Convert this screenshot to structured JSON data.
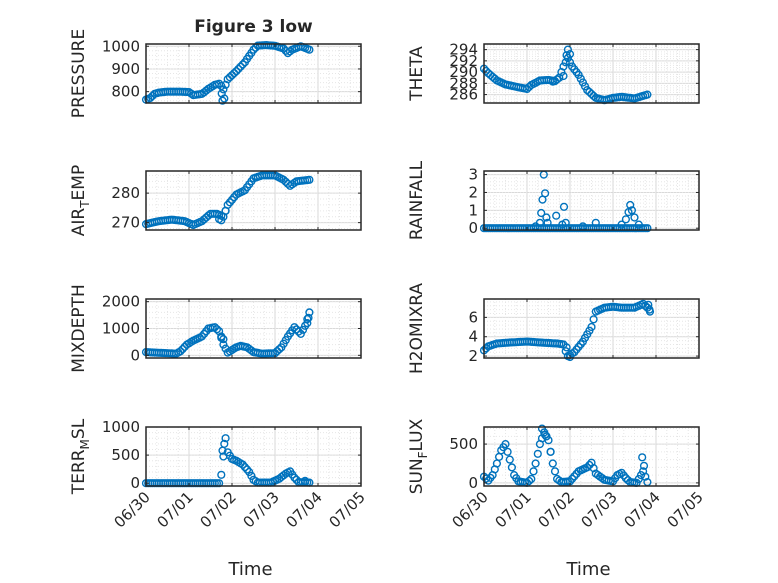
{
  "figure": {
    "title": "Figure 3 low",
    "marker_color": "#0072bd",
    "axis_color": "#262626",
    "grid_color": "#d9d9d9"
  },
  "chart_data": [
    {
      "type": "scatter",
      "ylabel": "PRESSURE",
      "title": "Figure 3 low",
      "xlabel": "",
      "grid": true,
      "x_ticks": [
        "06/30",
        "07/01",
        "07/02",
        "07/03",
        "07/04",
        "07/05"
      ],
      "show_x_tick_labels": false,
      "ylim": [
        750,
        1010
      ],
      "yticks": [
        800,
        900,
        1000
      ],
      "ytick_labels": [
        "800",
        "900",
        "1000"
      ],
      "anchors": [
        [
          0.0,
          765
        ],
        [
          0.1,
          772
        ],
        [
          0.2,
          790
        ],
        [
          0.3,
          796
        ],
        [
          0.5,
          800
        ],
        [
          0.8,
          800
        ],
        [
          1.0,
          798
        ],
        [
          1.1,
          785
        ],
        [
          1.3,
          790
        ],
        [
          1.45,
          812
        ],
        [
          1.6,
          830
        ],
        [
          1.7,
          835
        ],
        [
          1.75,
          825
        ],
        [
          1.8,
          810
        ],
        [
          1.85,
          830
        ],
        [
          1.9,
          855
        ],
        [
          2.1,
          890
        ],
        [
          2.3,
          930
        ],
        [
          2.5,
          985
        ],
        [
          2.6,
          1003
        ],
        [
          2.8,
          1005
        ],
        [
          3.0,
          1002
        ],
        [
          3.2,
          990
        ],
        [
          3.3,
          970
        ],
        [
          3.4,
          985
        ],
        [
          3.6,
          1000
        ],
        [
          3.8,
          985
        ]
      ],
      "extra_points": [
        [
          1.78,
          760
        ],
        [
          1.76,
          792
        ],
        [
          1.82,
          770
        ]
      ]
    },
    {
      "type": "scatter",
      "ylabel": "THETA",
      "xlabel": "",
      "grid": true,
      "x_ticks": [
        "06/30",
        "07/01",
        "07/02",
        "07/03",
        "07/04",
        "07/05"
      ],
      "show_x_tick_labels": false,
      "ylim": [
        284.5,
        295
      ],
      "yticks": [
        286,
        288,
        290,
        292,
        294
      ],
      "ytick_labels": [
        "286",
        "288",
        "290",
        "292",
        "294"
      ],
      "anchors": [
        [
          0.0,
          290.6
        ],
        [
          0.1,
          289.8
        ],
        [
          0.3,
          288.5
        ],
        [
          0.5,
          287.8
        ],
        [
          0.8,
          287.3
        ],
        [
          1.0,
          287.0
        ],
        [
          1.1,
          287.7
        ],
        [
          1.3,
          288.5
        ],
        [
          1.5,
          288.6
        ],
        [
          1.65,
          288.4
        ],
        [
          1.75,
          289.0
        ],
        [
          1.85,
          291.0
        ],
        [
          1.95,
          292.5
        ],
        [
          2.05,
          291.0
        ],
        [
          2.2,
          289.5
        ],
        [
          2.4,
          286.8
        ],
        [
          2.6,
          285.4
        ],
        [
          2.8,
          285.0
        ],
        [
          3.0,
          285.4
        ],
        [
          3.2,
          285.6
        ],
        [
          3.5,
          285.3
        ],
        [
          3.8,
          286.0
        ]
      ],
      "extra_points": [
        [
          1.95,
          294.0
        ],
        [
          1.92,
          293.0
        ],
        [
          2.0,
          293.2
        ],
        [
          1.85,
          289.3
        ],
        [
          1.6,
          288.3
        ]
      ]
    },
    {
      "type": "scatter",
      "ylabel": "AIR_TEMP",
      "xlabel": "",
      "grid": true,
      "x_ticks": [
        "06/30",
        "07/01",
        "07/02",
        "07/03",
        "07/04",
        "07/05"
      ],
      "show_x_tick_labels": false,
      "ylim": [
        267.5,
        287.5
      ],
      "yticks": [
        270,
        280
      ],
      "ytick_labels": [
        "270",
        "280"
      ],
      "anchors": [
        [
          0.0,
          269.5
        ],
        [
          0.3,
          270.5
        ],
        [
          0.6,
          271.0
        ],
        [
          0.9,
          270.5
        ],
        [
          1.1,
          269.2
        ],
        [
          1.3,
          270.5
        ],
        [
          1.5,
          273.0
        ],
        [
          1.65,
          273.0
        ],
        [
          1.8,
          272.0
        ],
        [
          1.9,
          276.0
        ],
        [
          2.1,
          279.5
        ],
        [
          2.3,
          281.0
        ],
        [
          2.5,
          285.0
        ],
        [
          2.7,
          286.0
        ],
        [
          3.0,
          286.0
        ],
        [
          3.2,
          284.5
        ],
        [
          3.35,
          282.5
        ],
        [
          3.5,
          284.0
        ],
        [
          3.8,
          284.5
        ]
      ],
      "extra_points": [
        [
          1.75,
          270.8
        ],
        [
          1.7,
          271.2
        ],
        [
          1.85,
          274.0
        ]
      ]
    },
    {
      "type": "scatter",
      "ylabel": "RAINFALL",
      "xlabel": "",
      "grid": true,
      "x_ticks": [
        "06/30",
        "07/01",
        "07/02",
        "07/03",
        "07/04",
        "07/05"
      ],
      "show_x_tick_labels": false,
      "ylim": [
        -0.1,
        3.2
      ],
      "yticks": [
        0,
        1,
        2,
        3
      ],
      "ytick_labels": [
        "0",
        "1",
        "2",
        "3"
      ],
      "anchors": [
        [
          0.0,
          0
        ],
        [
          3.8,
          0
        ]
      ],
      "extra_points": [
        [
          1.2,
          0.1
        ],
        [
          1.3,
          0.3
        ],
        [
          1.33,
          0.85
        ],
        [
          1.36,
          1.6
        ],
        [
          1.39,
          3.0
        ],
        [
          1.42,
          1.95
        ],
        [
          1.45,
          0.6
        ],
        [
          1.48,
          0.3
        ],
        [
          1.68,
          0.7
        ],
        [
          1.82,
          0.2
        ],
        [
          1.86,
          1.2
        ],
        [
          1.9,
          0.3
        ],
        [
          2.3,
          0.1
        ],
        [
          2.6,
          0.3
        ],
        [
          3.2,
          0.2
        ],
        [
          3.3,
          0.5
        ],
        [
          3.36,
          0.9
        ],
        [
          3.4,
          1.3
        ],
        [
          3.44,
          1.0
        ],
        [
          3.5,
          0.6
        ],
        [
          3.6,
          0.2
        ]
      ]
    },
    {
      "type": "scatter",
      "ylabel": "MIXDEPTH",
      "xlabel": "",
      "grid": true,
      "x_ticks": [
        "06/30",
        "07/01",
        "07/02",
        "07/03",
        "07/04",
        "07/05"
      ],
      "show_x_tick_labels": false,
      "ylim": [
        -100,
        2100
      ],
      "yticks": [
        0,
        1000,
        2000
      ],
      "ytick_labels": [
        "0",
        "1000",
        "2000"
      ],
      "anchors": [
        [
          0.0,
          120
        ],
        [
          0.2,
          100
        ],
        [
          0.5,
          80
        ],
        [
          0.7,
          60
        ],
        [
          0.8,
          150
        ],
        [
          0.95,
          400
        ],
        [
          1.1,
          550
        ],
        [
          1.3,
          700
        ],
        [
          1.45,
          1000
        ],
        [
          1.6,
          1050
        ],
        [
          1.7,
          900
        ],
        [
          1.8,
          400
        ],
        [
          1.9,
          100
        ],
        [
          2.1,
          300
        ],
        [
          2.2,
          350
        ],
        [
          2.35,
          300
        ],
        [
          2.5,
          120
        ],
        [
          2.7,
          60
        ],
        [
          3.0,
          80
        ],
        [
          3.15,
          300
        ],
        [
          3.3,
          700
        ],
        [
          3.45,
          1050
        ],
        [
          3.6,
          800
        ],
        [
          3.7,
          1100
        ],
        [
          3.8,
          1600
        ]
      ],
      "extra_points": [
        [
          1.8,
          600
        ],
        [
          1.75,
          700
        ],
        [
          3.78,
          1400
        ],
        [
          3.75,
          1200
        ]
      ]
    },
    {
      "type": "scatter",
      "ylabel": "H2OMIXRA",
      "xlabel": "",
      "grid": true,
      "x_ticks": [
        "06/30",
        "07/01",
        "07/02",
        "07/03",
        "07/04",
        "07/05"
      ],
      "show_x_tick_labels": false,
      "ylim": [
        1.8,
        7.9
      ],
      "yticks": [
        2,
        4,
        6
      ],
      "ytick_labels": [
        "2",
        "4",
        "6"
      ],
      "anchors": [
        [
          0.0,
          2.6
        ],
        [
          0.1,
          3.0
        ],
        [
          0.3,
          3.3
        ],
        [
          0.6,
          3.4
        ],
        [
          1.0,
          3.5
        ],
        [
          1.3,
          3.4
        ],
        [
          1.7,
          3.3
        ],
        [
          1.85,
          3.2
        ],
        [
          1.9,
          2.5
        ],
        [
          1.95,
          2.0
        ],
        [
          2.1,
          2.4
        ],
        [
          2.3,
          3.5
        ],
        [
          2.5,
          5.0
        ],
        [
          2.6,
          6.6
        ],
        [
          2.8,
          7.0
        ],
        [
          3.0,
          7.1
        ],
        [
          3.2,
          7.0
        ],
        [
          3.5,
          7.0
        ],
        [
          3.7,
          7.4
        ],
        [
          3.85,
          6.8
        ]
      ],
      "extra_points": [
        [
          1.92,
          2.9
        ],
        [
          2.0,
          1.9
        ],
        [
          3.82,
          7.3
        ],
        [
          3.86,
          6.6
        ]
      ]
    },
    {
      "type": "scatter",
      "ylabel": "TERR_MSL",
      "xlabel": "Time",
      "grid": true,
      "x_ticks": [
        "06/30",
        "07/01",
        "07/02",
        "07/03",
        "07/04",
        "07/05"
      ],
      "show_x_tick_labels": true,
      "ylim": [
        -50,
        1000
      ],
      "yticks": [
        0,
        500,
        1000
      ],
      "ytick_labels": [
        "0",
        "500",
        "1000"
      ],
      "anchors": [
        [
          0.0,
          0
        ],
        [
          1.7,
          0
        ],
        [
          1.75,
          150
        ],
        [
          1.85,
          800
        ],
        [
          1.9,
          550
        ],
        [
          2.0,
          430
        ],
        [
          2.1,
          400
        ],
        [
          2.25,
          330
        ],
        [
          2.4,
          200
        ],
        [
          2.5,
          60
        ],
        [
          2.6,
          10
        ],
        [
          2.9,
          10
        ],
        [
          3.1,
          80
        ],
        [
          3.25,
          170
        ],
        [
          3.35,
          210
        ],
        [
          3.45,
          100
        ],
        [
          3.55,
          20
        ],
        [
          3.8,
          10
        ]
      ],
      "extra_points": [
        [
          1.82,
          700
        ],
        [
          1.78,
          580
        ],
        [
          3.7,
          40
        ]
      ]
    },
    {
      "type": "scatter",
      "ylabel": "SUN_FLUX",
      "xlabel": "Time",
      "grid": true,
      "x_ticks": [
        "06/30",
        "07/01",
        "07/02",
        "07/03",
        "07/04",
        "07/05"
      ],
      "show_x_tick_labels": true,
      "ylim": [
        -40,
        720
      ],
      "yticks": [
        0,
        500
      ],
      "ytick_labels": [
        "0",
        "500"
      ],
      "anchors": [
        [
          0.0,
          80
        ],
        [
          0.1,
          30
        ],
        [
          0.2,
          100
        ],
        [
          0.3,
          250
        ],
        [
          0.4,
          420
        ],
        [
          0.5,
          500
        ],
        [
          0.6,
          300
        ],
        [
          0.7,
          100
        ],
        [
          0.8,
          20
        ],
        [
          1.0,
          0
        ],
        [
          1.1,
          50
        ],
        [
          1.2,
          250
        ],
        [
          1.3,
          500
        ],
        [
          1.4,
          650
        ],
        [
          1.5,
          550
        ],
        [
          1.6,
          250
        ],
        [
          1.7,
          50
        ],
        [
          1.8,
          10
        ],
        [
          2.0,
          20
        ],
        [
          2.2,
          150
        ],
        [
          2.4,
          200
        ],
        [
          2.5,
          260
        ],
        [
          2.6,
          120
        ],
        [
          2.8,
          40
        ],
        [
          3.0,
          20
        ],
        [
          3.1,
          100
        ],
        [
          3.2,
          130
        ],
        [
          3.3,
          60
        ],
        [
          3.4,
          10
        ],
        [
          3.55,
          0
        ],
        [
          3.7,
          150
        ],
        [
          3.8,
          10
        ]
      ],
      "extra_points": [
        [
          1.35,
          700
        ],
        [
          1.45,
          600
        ],
        [
          1.55,
          400
        ],
        [
          1.42,
          620
        ],
        [
          3.68,
          330
        ],
        [
          3.72,
          220
        ]
      ]
    }
  ]
}
